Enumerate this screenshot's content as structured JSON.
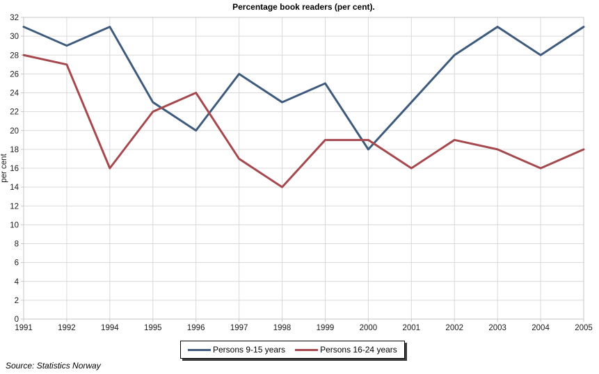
{
  "title": "Percentage book readers (per cent).",
  "source": "Source: Statistics Norway",
  "chart_data": {
    "type": "line",
    "title": "Percentage book readers (per cent).",
    "xlabel": "",
    "ylabel": "per cent",
    "categories": [
      "1991",
      "1992",
      "1994",
      "1995",
      "1996",
      "1997",
      "1998",
      "1999",
      "2000",
      "2001",
      "2002",
      "2003",
      "2004",
      "2005"
    ],
    "series": [
      {
        "name": "Persons 9-15 years",
        "color": "#3E5A7C",
        "values": [
          31,
          29,
          31,
          23,
          20,
          26,
          23,
          25,
          18,
          23,
          28,
          31,
          28,
          31
        ]
      },
      {
        "name": "Persons 16-24 years",
        "color": "#A5494F",
        "values": [
          28,
          27,
          16,
          22,
          24,
          17,
          14,
          19,
          19,
          16,
          19,
          18,
          16,
          18
        ]
      }
    ],
    "ylim": [
      0,
      32
    ],
    "ytick_step": 2,
    "grid": true,
    "legend_position": "bottom",
    "grid_color": "#D9D9D9",
    "axis_color": "#C6C6C6",
    "tick_text_color": "#1A1A1A"
  }
}
